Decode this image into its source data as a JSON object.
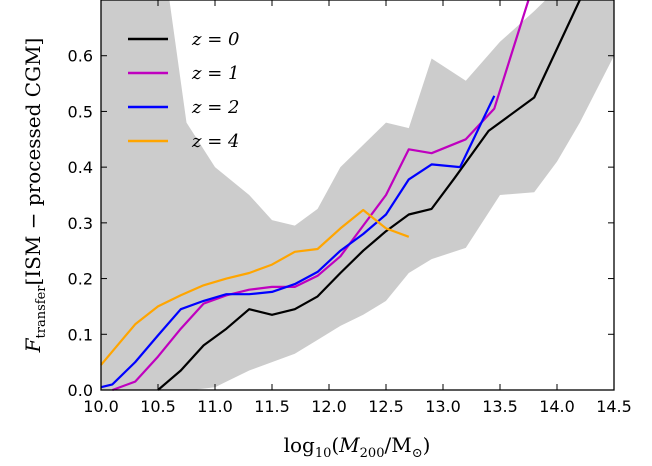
{
  "chart_data": {
    "type": "line",
    "xlabel": "log10(M200/M⊙)",
    "ylabel": "Ftransfer[ISM − processed CGM]",
    "xlim": [
      10.0,
      14.5
    ],
    "ylim": [
      0.0,
      0.7
    ],
    "xticks": [
      "10.0",
      "10.5",
      "11.0",
      "11.5",
      "12.0",
      "12.5",
      "13.0",
      "13.5",
      "14.0",
      "14.5"
    ],
    "yticks": [
      "0.0",
      "0.1",
      "0.2",
      "0.3",
      "0.4",
      "0.5",
      "0.6"
    ],
    "grid": false,
    "legend_position": "top-left",
    "band": {
      "color": "#cccccc",
      "upper": [
        [
          10.0,
          0.7
        ],
        [
          10.6,
          0.7
        ],
        [
          10.75,
          0.48
        ],
        [
          11.0,
          0.4
        ],
        [
          11.3,
          0.35
        ],
        [
          11.5,
          0.305
        ],
        [
          11.7,
          0.295
        ],
        [
          11.9,
          0.325
        ],
        [
          12.1,
          0.4
        ],
        [
          12.3,
          0.44
        ],
        [
          12.5,
          0.48
        ],
        [
          12.7,
          0.47
        ],
        [
          12.9,
          0.595
        ],
        [
          13.2,
          0.555
        ],
        [
          13.5,
          0.625
        ],
        [
          13.8,
          0.68
        ],
        [
          13.9,
          0.7
        ],
        [
          14.5,
          0.7
        ]
      ],
      "lower": [
        [
          14.5,
          0.6
        ],
        [
          14.2,
          0.48
        ],
        [
          14.0,
          0.41
        ],
        [
          13.8,
          0.355
        ],
        [
          13.5,
          0.35
        ],
        [
          13.2,
          0.255
        ],
        [
          12.9,
          0.235
        ],
        [
          12.7,
          0.21
        ],
        [
          12.5,
          0.16
        ],
        [
          12.3,
          0.135
        ],
        [
          12.1,
          0.115
        ],
        [
          11.9,
          0.09
        ],
        [
          11.7,
          0.065
        ],
        [
          11.5,
          0.05
        ],
        [
          11.3,
          0.035
        ],
        [
          11.0,
          0.005
        ],
        [
          10.8,
          0.0
        ],
        [
          10.0,
          0.0
        ]
      ]
    },
    "series": [
      {
        "name": "z=0",
        "color": "#000000",
        "x": [
          10.5,
          10.7,
          10.9,
          11.1,
          11.3,
          11.5,
          11.7,
          11.9,
          12.1,
          12.3,
          12.5,
          12.7,
          12.9,
          13.1,
          13.4,
          13.8,
          14.2
        ],
        "y": [
          0.0,
          0.035,
          0.08,
          0.11,
          0.145,
          0.135,
          0.145,
          0.168,
          0.21,
          0.25,
          0.285,
          0.315,
          0.325,
          0.38,
          0.465,
          0.525,
          0.7
        ]
      },
      {
        "name": "z=1",
        "color": "#bf00bf",
        "x": [
          10.1,
          10.3,
          10.5,
          10.7,
          10.9,
          11.1,
          11.3,
          11.5,
          11.7,
          11.9,
          12.1,
          12.3,
          12.5,
          12.7,
          12.9,
          13.2,
          13.45,
          13.75
        ],
        "y": [
          0.0,
          0.015,
          0.06,
          0.11,
          0.155,
          0.17,
          0.18,
          0.185,
          0.185,
          0.205,
          0.24,
          0.295,
          0.35,
          0.432,
          0.425,
          0.45,
          0.505,
          0.7
        ]
      },
      {
        "name": "z=2",
        "color": "#0000ff",
        "x": [
          10.0,
          10.1,
          10.3,
          10.5,
          10.7,
          10.9,
          11.1,
          11.3,
          11.5,
          11.7,
          11.9,
          12.1,
          12.3,
          12.5,
          12.7,
          12.9,
          13.15,
          13.45
        ],
        "y": [
          0.005,
          0.01,
          0.05,
          0.098,
          0.145,
          0.16,
          0.172,
          0.172,
          0.176,
          0.19,
          0.212,
          0.25,
          0.28,
          0.315,
          0.378,
          0.405,
          0.4,
          0.528
        ]
      },
      {
        "name": "z=4",
        "color": "#ffa500",
        "x": [
          10.0,
          10.3,
          10.5,
          10.7,
          10.9,
          11.1,
          11.3,
          11.5,
          11.7,
          11.9,
          12.1,
          12.3,
          12.5,
          12.7
        ],
        "y": [
          0.045,
          0.118,
          0.15,
          0.17,
          0.188,
          0.2,
          0.21,
          0.225,
          0.248,
          0.253,
          0.29,
          0.323,
          0.29,
          0.275
        ]
      }
    ]
  }
}
